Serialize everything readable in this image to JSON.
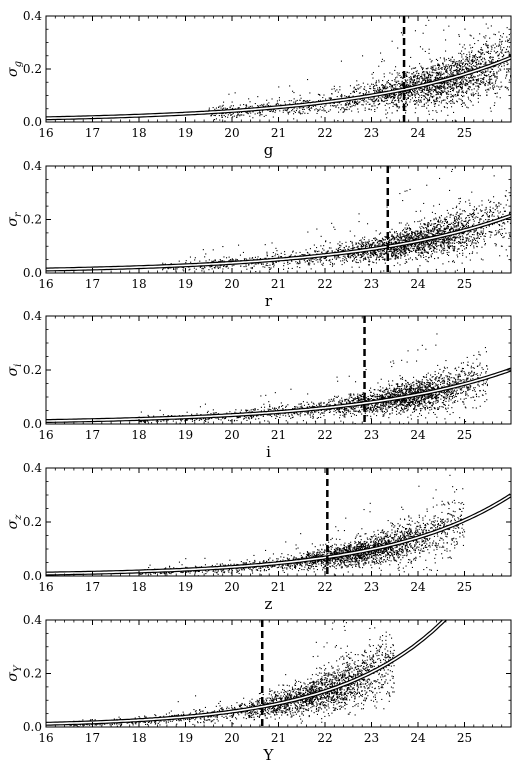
{
  "chart_data": [
    {
      "type": "scatter",
      "xlabel": "g",
      "ylabel": "σ_g",
      "ylabel_main": "σ",
      "ylabel_sub": "g",
      "xlim": [
        16,
        26
      ],
      "ylim": [
        0,
        0.4
      ],
      "xticks": [
        "16",
        "17",
        "18",
        "19",
        "20",
        "21",
        "22",
        "23",
        "24",
        "25"
      ],
      "yticks": [
        "0.0",
        "0.2",
        "0.4"
      ],
      "limit_line_x": 23.7,
      "fit_curve": {
        "a": 0.012,
        "b": 0.3,
        "x0": 16,
        "c": 0.002
      },
      "scatter_summary": {
        "x_range": [
          19.5,
          26
        ],
        "density_peak_x": 24.5
      }
    },
    {
      "type": "scatter",
      "xlabel": "r",
      "ylabel": "σ_r",
      "ylabel_main": "σ",
      "ylabel_sub": "r",
      "xlim": [
        16,
        26
      ],
      "ylim": [
        0,
        0.4
      ],
      "xticks": [
        "16",
        "17",
        "18",
        "19",
        "20",
        "21",
        "22",
        "23",
        "24",
        "25"
      ],
      "yticks": [
        "0.0",
        "0.2",
        "0.4"
      ],
      "limit_line_x": 23.35,
      "fit_curve": {
        "a": 0.011,
        "b": 0.296,
        "x0": 16,
        "c": 0.002
      },
      "scatter_summary": {
        "x_range": [
          18.5,
          26
        ],
        "density_peak_x": 24.0
      }
    },
    {
      "type": "scatter",
      "xlabel": "i",
      "ylabel": "σ_i",
      "ylabel_main": "σ",
      "ylabel_sub": "i",
      "xlim": [
        16,
        26
      ],
      "ylim": [
        0,
        0.4
      ],
      "xticks": [
        "16",
        "17",
        "18",
        "19",
        "20",
        "21",
        "22",
        "23",
        "24",
        "25"
      ],
      "yticks": [
        "0.0",
        "0.2",
        "0.4"
      ],
      "limit_line_x": 22.85,
      "fit_curve": {
        "a": 0.009,
        "b": 0.31,
        "x0": 16,
        "c": 0.002
      },
      "scatter_summary": {
        "x_range": [
          18,
          25.5
        ],
        "density_peak_x": 23.8
      }
    },
    {
      "type": "scatter",
      "xlabel": "z",
      "ylabel": "σ_z",
      "ylabel_main": "σ",
      "ylabel_sub": "z",
      "xlim": [
        16,
        26
      ],
      "ylim": [
        0,
        0.4
      ],
      "xticks": [
        "16",
        "17",
        "18",
        "19",
        "20",
        "21",
        "22",
        "23",
        "24",
        "25"
      ],
      "yticks": [
        "0.0",
        "0.2",
        "0.4"
      ],
      "limit_line_x": 22.05,
      "fit_curve": {
        "a": 0.007,
        "b": 0.375,
        "x0": 16,
        "c": 0.002
      },
      "scatter_summary": {
        "x_range": [
          18,
          25
        ],
        "density_peak_x": 23.0
      }
    },
    {
      "type": "scatter",
      "xlabel": "Y",
      "ylabel": "σ_Y",
      "ylabel_main": "σ",
      "ylabel_sub": "Y",
      "xlim": [
        16,
        26
      ],
      "ylim": [
        0,
        0.4
      ],
      "xticks": [
        "16",
        "17",
        "18",
        "19",
        "20",
        "21",
        "22",
        "23",
        "24",
        "25"
      ],
      "yticks": [
        "0.0",
        "0.2",
        "0.4"
      ],
      "limit_line_x": 20.65,
      "fit_curve": {
        "a": 0.01,
        "b": 0.43,
        "x0": 16,
        "c": 0.002
      },
      "scatter_summary": {
        "x_range": [
          16.5,
          23.5
        ],
        "density_peak_x": 22.0
      }
    }
  ]
}
